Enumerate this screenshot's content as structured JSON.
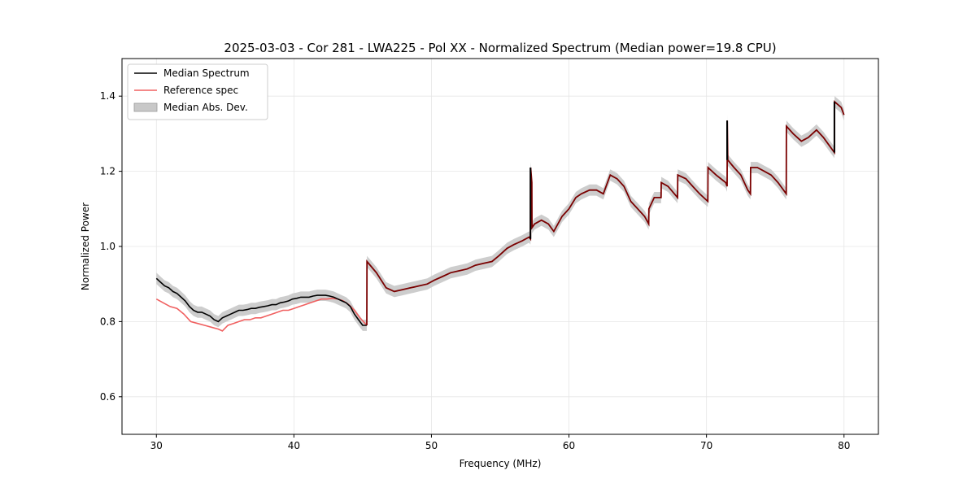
{
  "chart_data": {
    "type": "line",
    "title": "2025-03-03 - Cor 281 - LWA225 - Pol XX - Normalized Spectrum (Median power=19.8 CPU)",
    "xlabel": "Frequency (MHz)",
    "ylabel": "Normalized Power",
    "xlim": [
      27.5,
      82.5
    ],
    "ylim": [
      0.5,
      1.5
    ],
    "xticks": [
      30,
      40,
      50,
      60,
      70,
      80
    ],
    "yticks": [
      0.6,
      0.8,
      1.0,
      1.2,
      1.4
    ],
    "xtick_labels": [
      "30",
      "40",
      "50",
      "60",
      "70",
      "80"
    ],
    "ytick_labels": [
      "0.6",
      "0.8",
      "1.0",
      "1.2",
      "1.4"
    ],
    "grid": true,
    "legend_position": "top-left",
    "legend": [
      "Median Spectrum",
      "Reference spec",
      "Median Abs. Dev."
    ],
    "colors": {
      "median": "#000000",
      "reference": "#f06060",
      "overlap": "#7a0000",
      "mad_fill": "#c8c8c8"
    },
    "series": [
      {
        "name": "Median Spectrum",
        "x": [
          30.0,
          30.3,
          30.6,
          30.9,
          31.2,
          31.5,
          31.8,
          32.1,
          32.4,
          32.7,
          33.0,
          33.3,
          33.6,
          33.9,
          34.2,
          34.5,
          34.8,
          35.1,
          35.4,
          35.7,
          36.0,
          36.3,
          36.6,
          36.9,
          37.2,
          37.5,
          37.8,
          38.1,
          38.4,
          38.7,
          39.0,
          39.3,
          39.6,
          39.9,
          40.2,
          40.5,
          40.8,
          41.1,
          41.4,
          41.7,
          42.0,
          42.3,
          42.6,
          42.9,
          43.2,
          43.5,
          43.8,
          44.1,
          44.4,
          44.7,
          45.0,
          45.3,
          45.31,
          46.0,
          46.7,
          47.3,
          47.9,
          48.5,
          49.1,
          49.7,
          50.2,
          50.8,
          51.4,
          52.0,
          52.6,
          53.2,
          53.8,
          54.4,
          54.9,
          55.5,
          56.0,
          56.6,
          57.1,
          57.2,
          57.21,
          57.3,
          57.31,
          57.5,
          58.0,
          58.5,
          58.9,
          59.5,
          60.0,
          60.5,
          60.9,
          61.5,
          62.0,
          62.5,
          62.9,
          63.0,
          63.5,
          64.0,
          64.5,
          65.0,
          65.5,
          65.8,
          65.81,
          66.2,
          66.7,
          66.71,
          67.2,
          67.9,
          67.91,
          68.5,
          69.0,
          69.5,
          70.1,
          70.11,
          70.7,
          71.4,
          71.5,
          71.51,
          71.55,
          72.0,
          72.5,
          73.0,
          73.2,
          73.21,
          73.7,
          74.2,
          74.7,
          75.2,
          75.8,
          75.81,
          76.3,
          76.9,
          77.4,
          78.0,
          78.5,
          79.3,
          79.31,
          79.8,
          80.0
        ],
        "y": [
          0.915,
          0.905,
          0.895,
          0.89,
          0.88,
          0.875,
          0.865,
          0.855,
          0.84,
          0.83,
          0.825,
          0.825,
          0.82,
          0.815,
          0.805,
          0.8,
          0.81,
          0.815,
          0.82,
          0.825,
          0.83,
          0.83,
          0.832,
          0.835,
          0.835,
          0.838,
          0.84,
          0.842,
          0.845,
          0.845,
          0.85,
          0.852,
          0.855,
          0.86,
          0.862,
          0.865,
          0.865,
          0.865,
          0.868,
          0.87,
          0.87,
          0.87,
          0.868,
          0.865,
          0.86,
          0.855,
          0.85,
          0.84,
          0.82,
          0.805,
          0.79,
          0.79,
          0.96,
          0.93,
          0.89,
          0.88,
          0.885,
          0.89,
          0.895,
          0.9,
          0.91,
          0.92,
          0.93,
          0.935,
          0.94,
          0.95,
          0.955,
          0.96,
          0.975,
          0.995,
          1.005,
          1.015,
          1.025,
          1.02,
          1.21,
          1.17,
          1.05,
          1.06,
          1.07,
          1.06,
          1.04,
          1.08,
          1.1,
          1.13,
          1.14,
          1.15,
          1.15,
          1.14,
          1.18,
          1.19,
          1.18,
          1.16,
          1.12,
          1.1,
          1.08,
          1.06,
          1.1,
          1.13,
          1.13,
          1.17,
          1.16,
          1.13,
          1.19,
          1.18,
          1.16,
          1.14,
          1.12,
          1.21,
          1.19,
          1.17,
          1.16,
          1.335,
          1.23,
          1.21,
          1.19,
          1.15,
          1.14,
          1.21,
          1.21,
          1.2,
          1.19,
          1.17,
          1.14,
          1.32,
          1.3,
          1.28,
          1.29,
          1.31,
          1.29,
          1.25,
          1.385,
          1.37,
          1.35
        ]
      },
      {
        "name": "Reference spec",
        "x": [
          30.0,
          30.5,
          31.0,
          31.5,
          32.0,
          32.5,
          33.0,
          33.5,
          34.0,
          34.5,
          34.8,
          35.2,
          35.6,
          36.0,
          36.4,
          36.8,
          37.2,
          37.6,
          38.0,
          38.4,
          38.8,
          39.2,
          39.6,
          40.0,
          40.4,
          40.8,
          41.2,
          41.6,
          42.0,
          42.4,
          42.8,
          43.2,
          43.6,
          44.0,
          44.4,
          44.8,
          45.3
        ],
        "y": [
          0.86,
          0.85,
          0.84,
          0.835,
          0.82,
          0.8,
          0.795,
          0.79,
          0.785,
          0.78,
          0.775,
          0.79,
          0.795,
          0.8,
          0.805,
          0.805,
          0.81,
          0.81,
          0.815,
          0.82,
          0.825,
          0.83,
          0.83,
          0.835,
          0.84,
          0.845,
          0.85,
          0.855,
          0.86,
          0.86,
          0.862,
          0.86,
          0.855,
          0.845,
          0.83,
          0.81,
          0.79
        ]
      }
    ],
    "mad_band_halfwidth": 0.015
  }
}
